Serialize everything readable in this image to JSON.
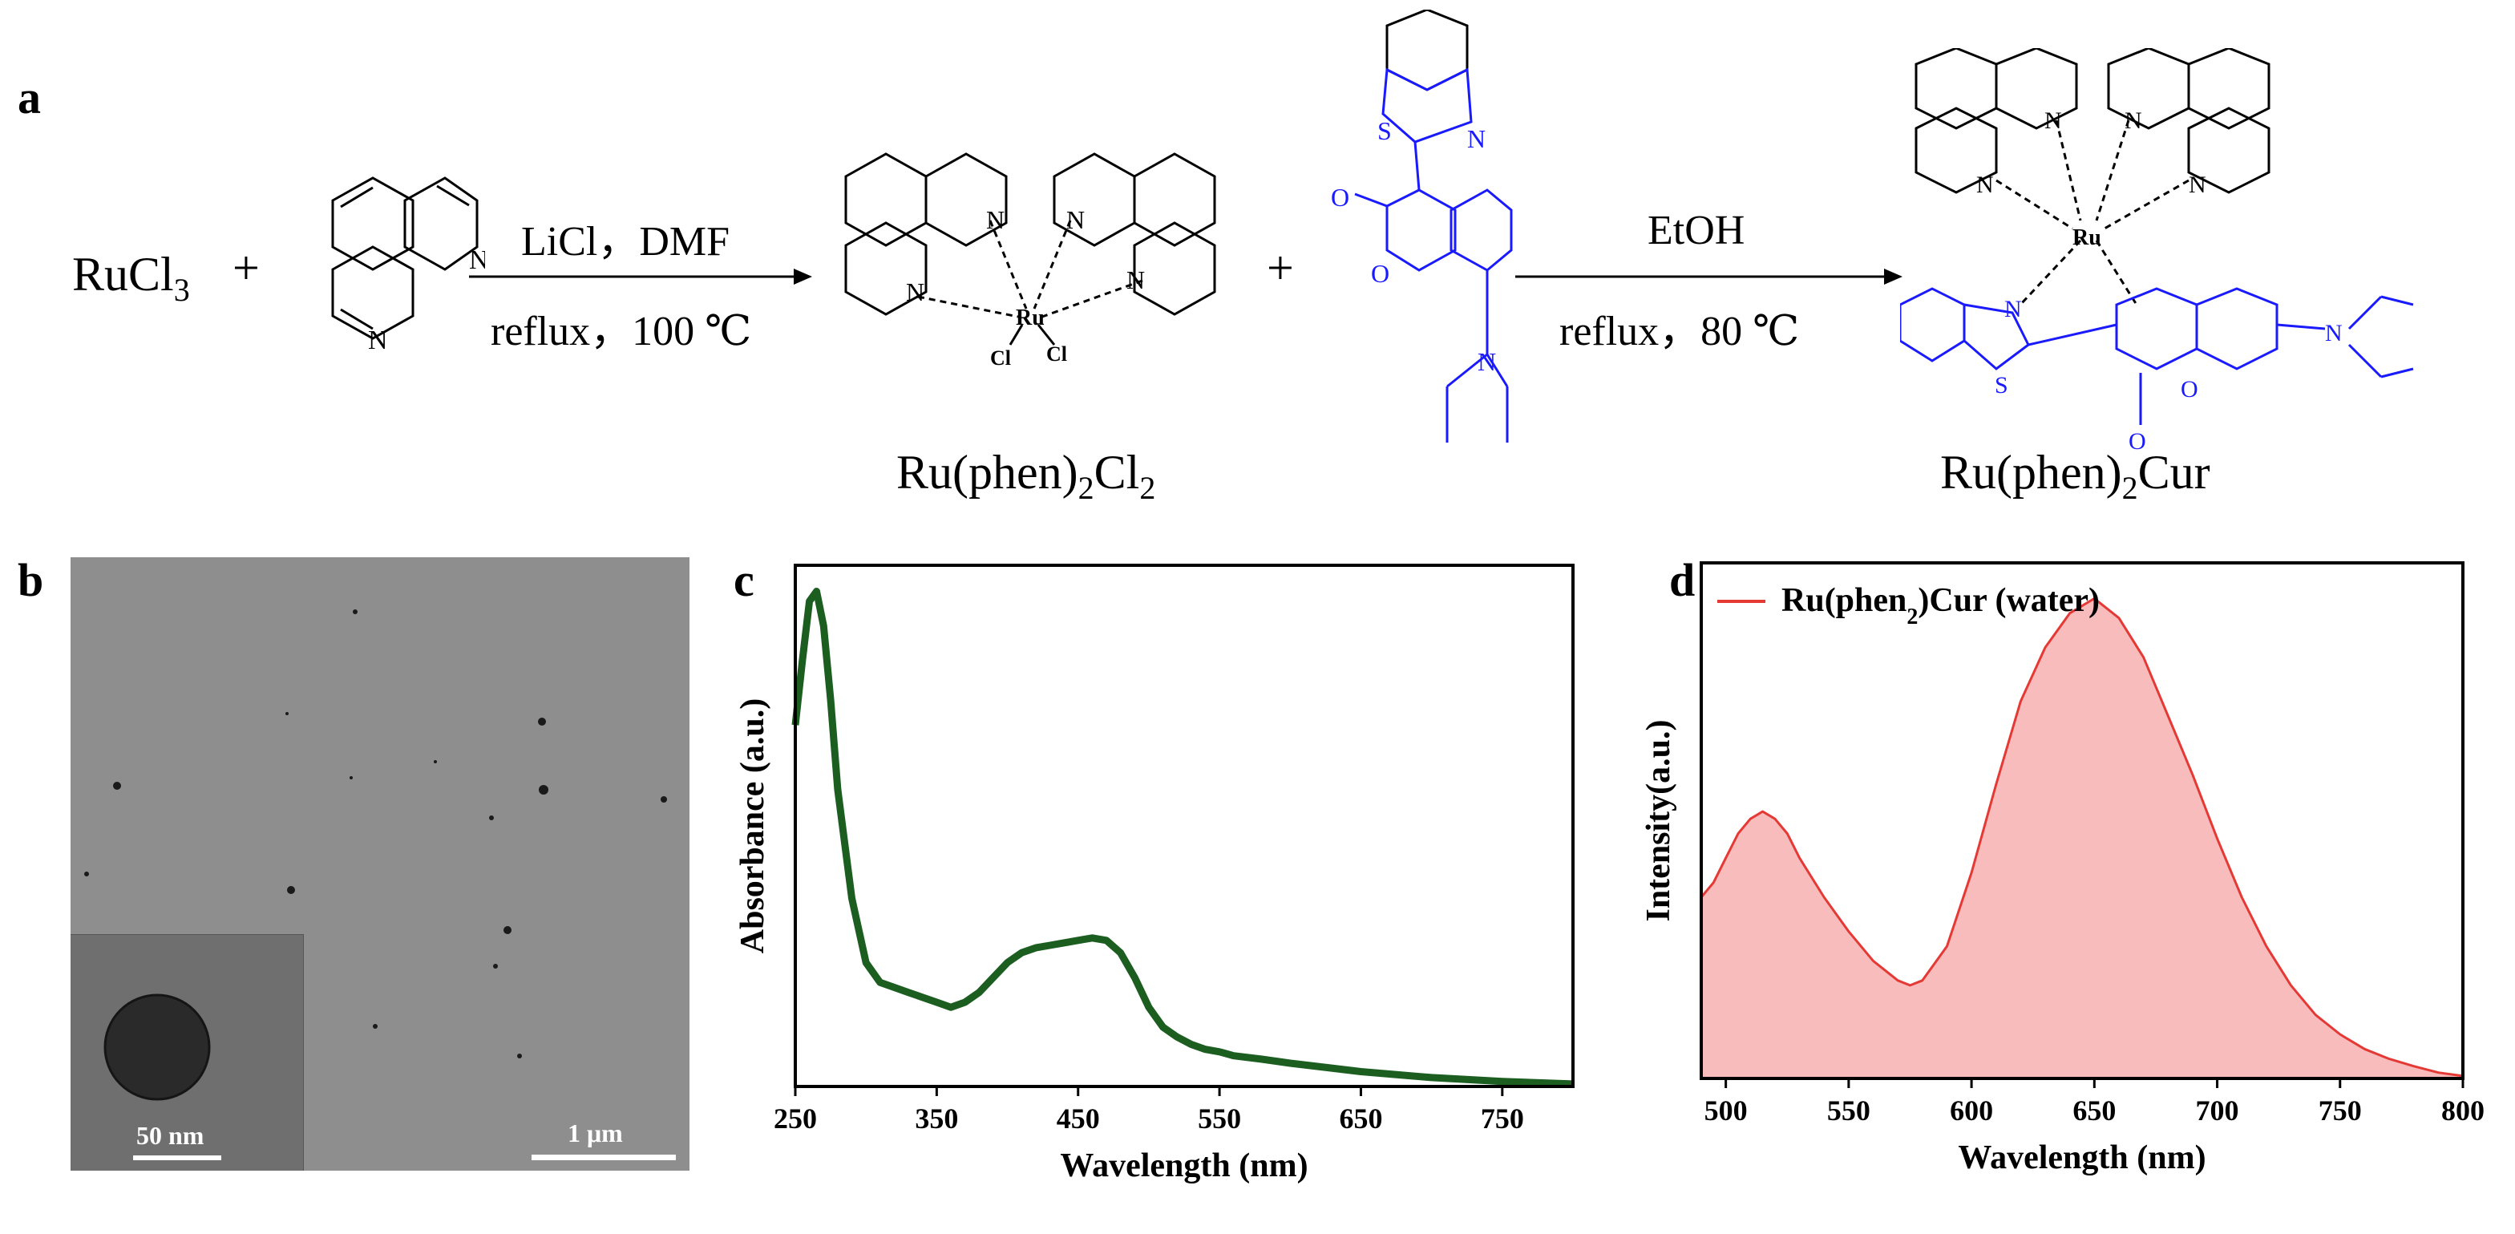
{
  "panels": {
    "a": "a",
    "b": "b",
    "c": "c",
    "d": "d"
  },
  "scheme": {
    "reactant1": "RuCl",
    "reactant1_sub": "3",
    "plus": "+",
    "step1_top": "LiCl，DMF",
    "step1_bottom": "reflux，100 ℃",
    "step2_top": "EtOH",
    "step2_bottom": "reflux，80 ℃",
    "intermediate": {
      "a": "Ru(phen)",
      "s1": "2",
      "b": "Cl",
      "s2": "2"
    },
    "product": {
      "a": "Ru(phen)",
      "s1": "2",
      "b": "Cur"
    },
    "atoms": {
      "N": "N",
      "Ru": "Ru",
      "Cl": "Cl",
      "S": "S",
      "O": "O"
    }
  },
  "tem": {
    "scale_main": "1 μm",
    "scale_inset": "50 nm"
  },
  "chart_data": [
    {
      "type": "line",
      "panel": "c",
      "xlabel": "Wavelength (nm)",
      "ylabel": "Absorbance (a.u.)",
      "xlim": [
        250,
        800
      ],
      "xticks": [
        250,
        350,
        450,
        550,
        650,
        750
      ],
      "y_ticks_shown": false,
      "line_color": "#1b5e20",
      "series": [
        {
          "x": [
            250,
            255,
            260,
            265,
            270,
            275,
            280,
            290,
            300,
            310,
            320,
            330,
            340,
            350,
            360,
            370,
            380,
            390,
            400,
            410,
            420,
            430,
            440,
            450,
            460,
            470,
            480,
            490,
            500,
            510,
            520,
            530,
            540,
            550,
            560,
            580,
            600,
            650,
            700,
            750,
            800
          ],
          "values": [
            0.73,
            0.86,
            0.98,
            1.0,
            0.93,
            0.78,
            0.6,
            0.38,
            0.25,
            0.21,
            0.2,
            0.19,
            0.18,
            0.17,
            0.16,
            0.17,
            0.19,
            0.22,
            0.25,
            0.27,
            0.28,
            0.285,
            0.29,
            0.295,
            0.3,
            0.295,
            0.27,
            0.22,
            0.16,
            0.12,
            0.1,
            0.085,
            0.075,
            0.07,
            0.062,
            0.055,
            0.047,
            0.03,
            0.018,
            0.01,
            0.005
          ]
        }
      ]
    },
    {
      "type": "area",
      "panel": "d",
      "xlabel": "Wavelength (nm)",
      "ylabel": "Intensity(a.u.)",
      "xlim": [
        490,
        800
      ],
      "xticks": [
        500,
        550,
        600,
        650,
        700,
        750,
        800
      ],
      "y_ticks_shown": false,
      "legend_position": "top-left",
      "line_color": "#e53935",
      "fill_color": "#f8bcbc",
      "series": [
        {
          "name": "Ru(phen",
          "name_sub": "2",
          "name_tail": ")Cur (water)",
          "x": [
            490,
            495,
            500,
            505,
            510,
            515,
            520,
            525,
            530,
            540,
            550,
            560,
            570,
            575,
            580,
            590,
            600,
            610,
            620,
            630,
            640,
            650,
            660,
            670,
            680,
            690,
            700,
            710,
            720,
            730,
            740,
            750,
            760,
            770,
            780,
            790,
            800
          ],
          "values": [
            0.37,
            0.4,
            0.45,
            0.5,
            0.53,
            0.545,
            0.53,
            0.5,
            0.45,
            0.37,
            0.3,
            0.24,
            0.2,
            0.19,
            0.2,
            0.27,
            0.42,
            0.6,
            0.77,
            0.88,
            0.95,
            0.98,
            0.94,
            0.86,
            0.74,
            0.62,
            0.49,
            0.37,
            0.27,
            0.19,
            0.13,
            0.09,
            0.06,
            0.04,
            0.025,
            0.012,
            0.005
          ]
        }
      ]
    }
  ]
}
